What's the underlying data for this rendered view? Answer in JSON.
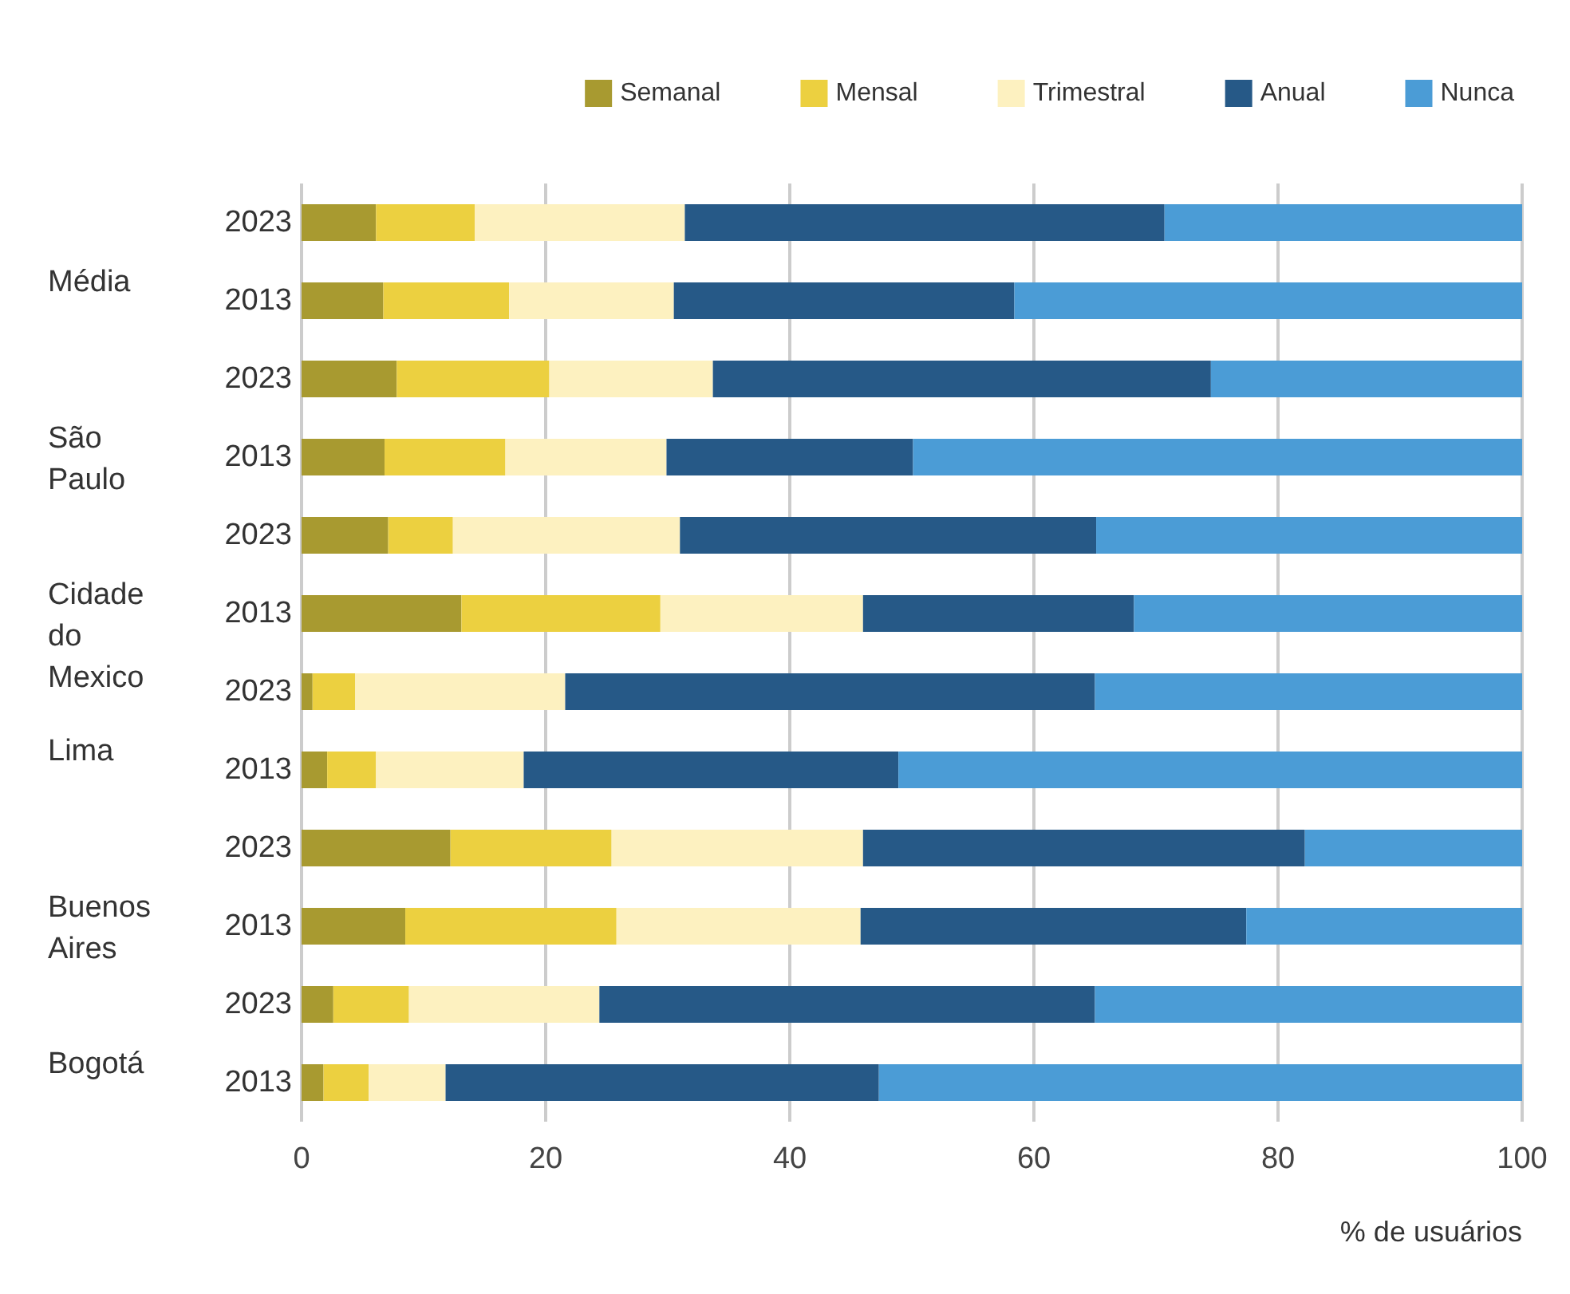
{
  "chart_data": {
    "type": "bar",
    "orientation": "horizontal",
    "stacked": true,
    "xlabel": "% de usuários",
    "categories": [
      "2023",
      "2013",
      "2023",
      "2013",
      "2023",
      "2013",
      "2023",
      "2013",
      "2023",
      "2013",
      "2023",
      "2013"
    ],
    "annotations": [
      "Média",
      "São Paulo",
      "Cidade do Mexico",
      "Lima",
      "Buenos Aires",
      "Bogotá"
    ],
    "series": [
      {
        "name": "Semanal",
        "color": "#a89a30",
        "values": [
          6.1,
          6.7,
          7.8,
          6.8,
          7.1,
          13.1,
          0.9,
          2.1,
          12.2,
          8.5,
          2.6,
          1.8
        ]
      },
      {
        "name": "Mensal",
        "color": "#ecd040",
        "values": [
          8.1,
          10.3,
          12.5,
          9.9,
          5.3,
          16.3,
          3.5,
          4.0,
          13.2,
          17.3,
          6.2,
          3.7
        ]
      },
      {
        "name": "Trimestral",
        "color": "#fdf1c0",
        "values": [
          17.2,
          13.5,
          13.4,
          13.2,
          18.6,
          16.6,
          17.2,
          12.1,
          20.6,
          20.0,
          15.6,
          6.3
        ]
      },
      {
        "name": "Anual",
        "color": "#265987",
        "values": [
          39.3,
          27.9,
          40.8,
          20.2,
          34.1,
          22.2,
          43.4,
          30.7,
          36.2,
          31.6,
          40.6,
          35.5
        ]
      },
      {
        "name": "Nunca",
        "color": "#4b9cd6",
        "values": [
          29.3,
          41.6,
          25.5,
          49.9,
          34.9,
          31.8,
          35.0,
          51.1,
          17.8,
          22.6,
          35.0,
          52.7
        ]
      }
    ],
    "xlim": [
      0,
      100
    ],
    "xticks": [
      0,
      20,
      40,
      60,
      80,
      100
    ],
    "grid": "x",
    "legend": "top right"
  }
}
